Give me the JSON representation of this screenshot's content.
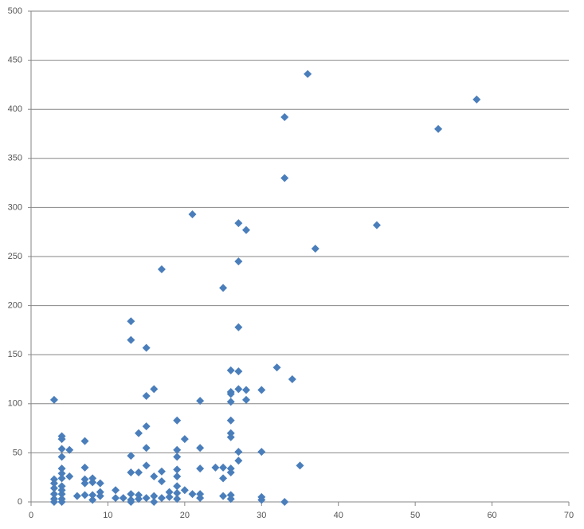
{
  "chart_data": {
    "type": "scatter",
    "color": "#4a7ebb",
    "grid": true,
    "xlim": [
      0,
      70
    ],
    "xticks": [
      0,
      10,
      20,
      30,
      40,
      50,
      60,
      70
    ],
    "ylim": [
      0,
      500
    ],
    "yticks": [
      0,
      50,
      100,
      150,
      200,
      250,
      300,
      350,
      400,
      450,
      500
    ],
    "x": [
      36,
      58,
      33,
      53,
      33,
      21,
      27,
      45,
      28,
      37,
      27,
      17,
      25,
      13,
      27,
      13,
      15,
      32,
      26,
      27,
      34,
      16,
      27,
      26,
      28,
      30,
      15,
      26,
      3,
      22,
      28,
      26,
      19,
      26,
      15,
      14,
      26,
      26,
      4,
      4,
      7,
      20,
      15,
      22,
      4,
      5,
      19,
      27,
      30,
      13,
      19,
      4,
      27,
      15,
      35,
      7,
      24,
      25,
      22,
      19,
      4,
      26,
      13,
      14,
      17,
      26,
      4,
      5,
      3,
      4,
      8,
      16,
      19,
      25,
      7,
      8,
      9,
      7,
      17,
      3,
      19,
      4,
      11,
      20,
      3,
      4,
      9,
      18,
      19,
      21,
      22,
      13,
      14,
      6,
      7,
      8,
      9,
      3,
      4,
      25,
      26,
      30,
      16,
      18,
      11,
      12,
      15,
      17,
      3,
      4,
      8,
      13,
      14,
      26,
      30,
      3,
      4,
      13,
      16,
      33,
      22,
      19
    ],
    "values": [
      436,
      410,
      392,
      380,
      330,
      293,
      284,
      282,
      277,
      258,
      245,
      237,
      218,
      184,
      178,
      165,
      157,
      137,
      134,
      133,
      125,
      115,
      115,
      112,
      114,
      114,
      108,
      110,
      104,
      103,
      104,
      102,
      83,
      83,
      77,
      70,
      70,
      66,
      67,
      64,
      62,
      64,
      55,
      55,
      54,
      53,
      53,
      51,
      51,
      47,
      46,
      46,
      42,
      37,
      37,
      35,
      35,
      35,
      34,
      33,
      34,
      34,
      30,
      30,
      31,
      30,
      29,
      26,
      23,
      24,
      24,
      26,
      26,
      24,
      23,
      20,
      19,
      19,
      21,
      19,
      16,
      16,
      12,
      12,
      14,
      12,
      10,
      10,
      9,
      8,
      8,
      8,
      7,
      6,
      7,
      7,
      6,
      8,
      8,
      6,
      7,
      5,
      6,
      5,
      4,
      4,
      4,
      4,
      3,
      3,
      2,
      2,
      3,
      3,
      2,
      0,
      0,
      0,
      0,
      0,
      4,
      3
    ]
  }
}
